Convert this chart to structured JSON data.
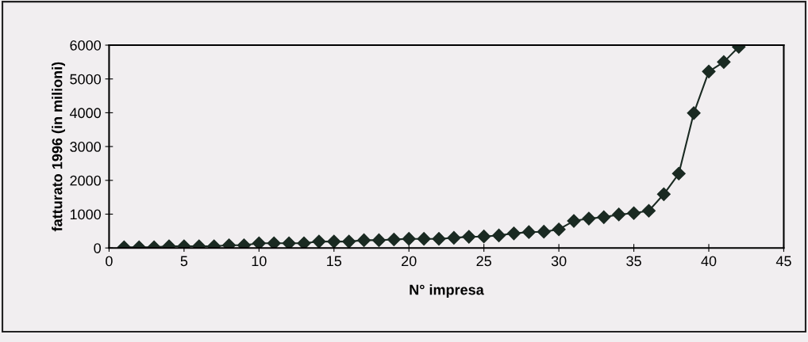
{
  "chart_data": {
    "type": "line",
    "xlabel": "N° impresa",
    "ylabel": "fatturato 1996 (in milioni)",
    "x": [
      1,
      2,
      3,
      4,
      5,
      6,
      7,
      8,
      9,
      10,
      11,
      12,
      13,
      14,
      15,
      16,
      17,
      18,
      19,
      20,
      21,
      22,
      23,
      24,
      25,
      26,
      27,
      28,
      29,
      30,
      31,
      32,
      33,
      34,
      35,
      36,
      37,
      38,
      39,
      40,
      41,
      42
    ],
    "series": [
      {
        "color": "#1a2a22",
        "values": [
          20,
          20,
          20,
          50,
          50,
          50,
          50,
          80,
          80,
          140,
          140,
          140,
          140,
          190,
          190,
          190,
          230,
          230,
          250,
          270,
          270,
          270,
          300,
          330,
          340,
          370,
          430,
          470,
          480,
          550,
          800,
          870,
          910,
          990,
          1030,
          1100,
          1590,
          2200,
          3990,
          5220,
          5500,
          5950
        ]
      }
    ],
    "xlim": [
      0,
      45
    ],
    "xticks": [
      0,
      5,
      10,
      15,
      20,
      25,
      30,
      35,
      40,
      45
    ],
    "ylim": [
      0,
      6000
    ],
    "yticks": [
      0,
      1000,
      2000,
      3000,
      4000,
      5000,
      6000
    ],
    "grid": false,
    "marker": "diamond",
    "line_style": "solid"
  }
}
